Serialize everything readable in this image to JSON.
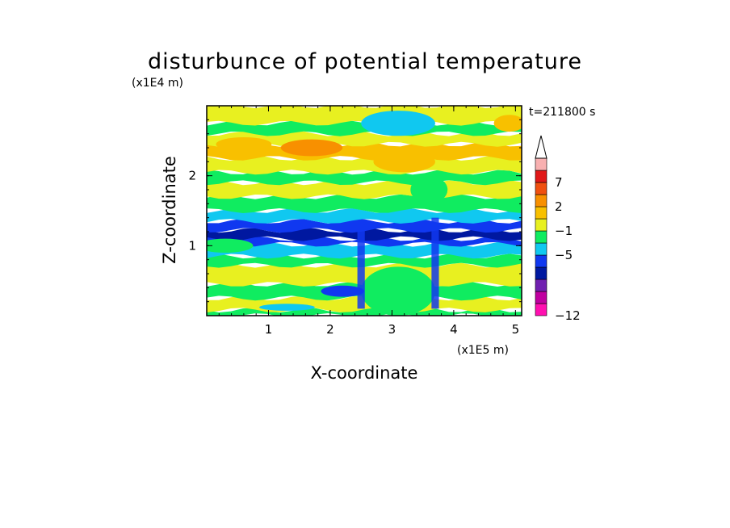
{
  "chart_data": {
    "type": "heatmap",
    "title": "disturbunce of potential temperature",
    "time_label": "t=211800 s",
    "xlabel": "X-coordinate",
    "ylabel": "Z-coordinate",
    "x_unit": "(x1E5 m)",
    "y_unit": "(x1E4 m)",
    "xlim": [
      0,
      5.1
    ],
    "ylim": [
      0,
      3.0
    ],
    "x_ticks": [
      1,
      2,
      3,
      4,
      5
    ],
    "y_ticks": [
      1,
      2
    ],
    "colorbar": {
      "levels_shown": [
        "7",
        "2",
        "−1",
        "−5",
        "−12"
      ],
      "colors": [
        "#ff10b0",
        "#c000a0",
        "#7020b0",
        "#0018a0",
        "#1038f0",
        "#10c8f0",
        "#10ec60",
        "#e8f020",
        "#f8c000",
        "#f89000",
        "#f05010",
        "#e01818",
        "#f8b0b0",
        "#ffffff"
      ],
      "extend_max": true
    },
    "bands": [
      {
        "z0": 0.0,
        "z1": 0.08,
        "level": 6
      },
      {
        "z0": 0.08,
        "z1": 0.25,
        "level": 7
      },
      {
        "z0": 0.25,
        "z1": 0.45,
        "level": 6
      },
      {
        "z0": 0.45,
        "z1": 0.72,
        "level": 7
      },
      {
        "z0": 0.72,
        "z1": 0.85,
        "level": 6
      },
      {
        "z0": 0.85,
        "z1": 1.02,
        "level": 5
      },
      {
        "z0": 1.02,
        "z1": 1.1,
        "level": 4
      },
      {
        "z0": 1.1,
        "z1": 1.22,
        "level": 3
      },
      {
        "z0": 1.22,
        "z1": 1.35,
        "level": 4
      },
      {
        "z0": 1.35,
        "z1": 1.5,
        "level": 5
      },
      {
        "z0": 1.5,
        "z1": 1.7,
        "level": 6
      },
      {
        "z0": 1.7,
        "z1": 1.9,
        "level": 7
      },
      {
        "z0": 1.9,
        "z1": 2.05,
        "level": 6
      },
      {
        "z0": 2.05,
        "z1": 2.25,
        "level": 7
      },
      {
        "z0": 2.25,
        "z1": 2.45,
        "level": 8
      },
      {
        "z0": 2.45,
        "z1": 2.6,
        "level": 7
      },
      {
        "z0": 2.6,
        "z1": 2.75,
        "level": 6
      },
      {
        "z0": 2.75,
        "z1": 3.0,
        "level": 7
      }
    ],
    "features": [
      {
        "shape": "blob",
        "x": 1.7,
        "z": 2.4,
        "rx": 0.5,
        "rz": 0.12,
        "level": 9
      },
      {
        "shape": "blob",
        "x": 0.6,
        "z": 2.45,
        "rx": 0.45,
        "rz": 0.1,
        "level": 8
      },
      {
        "shape": "blob",
        "x": 3.2,
        "z": 2.2,
        "rx": 0.5,
        "rz": 0.15,
        "level": 8
      },
      {
        "shape": "blob",
        "x": 4.9,
        "z": 2.75,
        "rx": 0.25,
        "rz": 0.12,
        "level": 8
      },
      {
        "shape": "blob",
        "x": 3.1,
        "z": 2.75,
        "rx": 0.6,
        "rz": 0.18,
        "level": 5
      },
      {
        "shape": "blob",
        "x": 3.6,
        "z": 1.8,
        "rx": 0.3,
        "rz": 0.2,
        "level": 6
      },
      {
        "shape": "blob",
        "x": 0.3,
        "z": 1.0,
        "rx": 0.45,
        "rz": 0.1,
        "level": 6
      },
      {
        "shape": "blob",
        "x": 3.1,
        "z": 0.35,
        "rx": 0.6,
        "rz": 0.35,
        "level": 6
      },
      {
        "shape": "blob",
        "x": 2.2,
        "z": 0.35,
        "rx": 0.35,
        "rz": 0.08,
        "level": 4
      },
      {
        "shape": "blob",
        "x": 1.3,
        "z": 0.12,
        "rx": 0.45,
        "rz": 0.05,
        "level": 5
      },
      {
        "shape": "column",
        "x": 2.5,
        "x_width": 0.12,
        "z0": 0.1,
        "z1": 1.3,
        "level": 4
      },
      {
        "shape": "column",
        "x": 3.7,
        "x_width": 0.12,
        "z0": 0.1,
        "z1": 1.4,
        "level": 4
      }
    ]
  }
}
